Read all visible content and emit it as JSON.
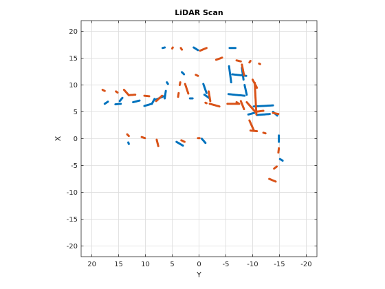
{
  "chart_data": {
    "type": "scatter",
    "title": "LiDAR Scan",
    "xlabel": "Y",
    "ylabel": "X",
    "x_reversed": true,
    "xlim": [
      -22,
      22
    ],
    "ylim": [
      -22,
      22
    ],
    "xticks": [
      20,
      15,
      10,
      5,
      0,
      -5,
      -10,
      -15,
      -20
    ],
    "yticks": [
      20,
      15,
      10,
      5,
      0,
      -5,
      -10,
      -15,
      -20
    ],
    "grid": true,
    "legend": "none",
    "series": [
      {
        "color": "#0072BD",
        "segments": [
          [
            [
              6.8,
              16.9
            ],
            [
              6.4,
              17.0
            ]
          ],
          [
            [
              1.0,
              17.0
            ],
            [
              0.2,
              16.5
            ]
          ],
          [
            [
              -5.7,
              16.9
            ],
            [
              -6.8,
              16.9
            ]
          ],
          [
            [
              3.2,
              12.4
            ],
            [
              2.8,
              12.0
            ]
          ],
          [
            [
              6.0,
              10.5
            ],
            [
              5.8,
              10.2
            ]
          ],
          [
            [
              -5.6,
              13.5
            ],
            [
              -6.0,
              10.5
            ]
          ],
          [
            [
              -6.2,
              12.0
            ],
            [
              -8.8,
              11.7
            ]
          ],
          [
            [
              -8.0,
              13.2
            ],
            [
              -8.3,
              11.0
            ]
          ],
          [
            [
              -8.5,
              10.0
            ],
            [
              -8.9,
              8.2
            ]
          ],
          [
            [
              -5.5,
              8.3
            ],
            [
              -8.5,
              8.0
            ]
          ],
          [
            [
              -0.8,
              10.2
            ],
            [
              -1.4,
              8.5
            ]
          ],
          [
            [
              -1.0,
              8.2
            ],
            [
              -2.0,
              7.5
            ]
          ],
          [
            [
              17.6,
              6.5
            ],
            [
              17.0,
              6.9
            ]
          ],
          [
            [
              15.6,
              6.4
            ],
            [
              14.6,
              6.5
            ]
          ],
          [
            [
              14.8,
              7.0
            ],
            [
              14.3,
              7.6
            ]
          ],
          [
            [
              12.3,
              6.8
            ],
            [
              11.1,
              7.1
            ]
          ],
          [
            [
              10.2,
              6.1
            ],
            [
              8.8,
              6.5
            ]
          ],
          [
            [
              8.8,
              6.5
            ],
            [
              8.3,
              7.4
            ]
          ],
          [
            [
              8.0,
              7.3
            ],
            [
              6.6,
              7.9
            ]
          ],
          [
            [
              6.4,
              7.5
            ],
            [
              6.2,
              8.9
            ]
          ],
          [
            [
              1.7,
              7.5
            ],
            [
              1.2,
              7.5
            ]
          ],
          [
            [
              -10.2,
              6.0
            ],
            [
              -13.8,
              6.2
            ]
          ],
          [
            [
              -9.2,
              4.5
            ],
            [
              -10.3,
              4.8
            ]
          ],
          [
            [
              -10.8,
              4.4
            ],
            [
              -13.2,
              4.6
            ]
          ],
          [
            [
              -13.8,
              5.0
            ],
            [
              -14.6,
              4.3
            ]
          ],
          [
            [
              -14.9,
              0.6
            ],
            [
              -14.9,
              -0.6
            ]
          ],
          [
            [
              -15.1,
              -3.8
            ],
            [
              -15.6,
              -4.1
            ]
          ],
          [
            [
              13.2,
              -0.7
            ],
            [
              13.1,
              -1.0
            ]
          ],
          [
            [
              4.2,
              -0.6
            ],
            [
              3.0,
              -1.3
            ]
          ],
          [
            [
              -0.5,
              0.0
            ],
            [
              -1.2,
              -0.8
            ]
          ]
        ]
      },
      {
        "color": "#D95319",
        "segments": [
          [
            [
              4.9,
              17.0
            ],
            [
              5.0,
              16.8
            ]
          ],
          [
            [
              3.2,
              16.6
            ],
            [
              3.4,
              16.9
            ]
          ],
          [
            [
              -0.2,
              16.4
            ],
            [
              -1.4,
              16.9
            ]
          ],
          [
            [
              -3.2,
              14.7
            ],
            [
              -4.3,
              15.1
            ]
          ],
          [
            [
              -7.0,
              14.6
            ],
            [
              -7.8,
              14.4
            ]
          ],
          [
            [
              -9.6,
              14.5
            ],
            [
              -9.4,
              14.2
            ]
          ],
          [
            [
              -11.2,
              14.0
            ],
            [
              -11.4,
              13.9
            ]
          ],
          [
            [
              0.2,
              11.7
            ],
            [
              0.6,
              11.9
            ]
          ],
          [
            [
              3.5,
              10.5
            ],
            [
              3.6,
              10.0
            ]
          ],
          [
            [
              3.8,
              8.5
            ],
            [
              3.9,
              7.8
            ]
          ],
          [
            [
              18.0,
              9.1
            ],
            [
              17.6,
              8.9
            ]
          ],
          [
            [
              15.5,
              8.8
            ],
            [
              15.2,
              8.6
            ]
          ],
          [
            [
              14.0,
              9.1
            ],
            [
              13.1,
              8.1
            ]
          ],
          [
            [
              13.1,
              8.1
            ],
            [
              11.9,
              8.2
            ]
          ],
          [
            [
              10.2,
              8.0
            ],
            [
              9.3,
              7.9
            ]
          ],
          [
            [
              8.0,
              7.0
            ],
            [
              6.9,
              8.0
            ]
          ],
          [
            [
              2.6,
              10.2
            ],
            [
              2.0,
              8.4
            ]
          ],
          [
            [
              -1.8,
              8.8
            ],
            [
              -2.1,
              7.0
            ]
          ],
          [
            [
              -2.0,
              6.5
            ],
            [
              -3.8,
              6.0
            ]
          ],
          [
            [
              -1.4,
              6.6
            ],
            [
              -1.2,
              6.7
            ]
          ],
          [
            [
              -5.3,
              6.5
            ],
            [
              -7.5,
              6.5
            ]
          ],
          [
            [
              -7.0,
              6.8
            ],
            [
              -7.3,
              6.6
            ]
          ],
          [
            [
              -8.0,
              13.8
            ],
            [
              -8.4,
              11.8
            ]
          ],
          [
            [
              -7.8,
              7.0
            ],
            [
              -8.4,
              5.5
            ]
          ],
          [
            [
              -8.9,
              6.8
            ],
            [
              -10.5,
              5.0
            ]
          ],
          [
            [
              -10.0,
              11.0
            ],
            [
              -10.8,
              9.5
            ]
          ],
          [
            [
              -10.4,
              10.4
            ],
            [
              -10.7,
              4.5
            ]
          ],
          [
            [
              -10.5,
              5.0
            ],
            [
              -12.0,
              5.2
            ]
          ],
          [
            [
              -13.8,
              4.8
            ],
            [
              -14.8,
              4.6
            ]
          ],
          [
            [
              -9.4,
              3.4
            ],
            [
              -10.2,
              1.6
            ]
          ],
          [
            [
              -9.6,
              1.5
            ],
            [
              -10.8,
              1.4
            ]
          ],
          [
            [
              -12.0,
              1.1
            ],
            [
              -12.4,
              1.0
            ]
          ],
          [
            [
              13.4,
              0.8
            ],
            [
              13.1,
              0.5
            ]
          ],
          [
            [
              10.7,
              0.3
            ],
            [
              10.1,
              0.1
            ]
          ],
          [
            [
              7.9,
              -0.2
            ],
            [
              7.6,
              -1.4
            ]
          ],
          [
            [
              3.3,
              -0.3
            ],
            [
              2.7,
              -0.6
            ]
          ],
          [
            [
              0.2,
              0.1
            ],
            [
              -0.1,
              0.1
            ]
          ],
          [
            [
              -14.9,
              -1.8
            ],
            [
              -14.8,
              -2.6
            ]
          ],
          [
            [
              -14.0,
              -5.6
            ],
            [
              -14.5,
              -5.2
            ]
          ],
          [
            [
              -13.1,
              -7.5
            ],
            [
              -14.3,
              -8.0
            ]
          ]
        ]
      }
    ]
  }
}
